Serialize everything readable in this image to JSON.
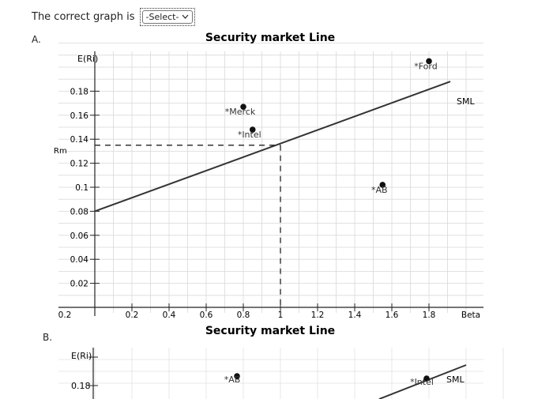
{
  "question": {
    "text": "The correct graph is",
    "select_value": "-Select-"
  },
  "options": [
    {
      "label": "A."
    },
    {
      "label": "B."
    }
  ],
  "chart_data": [
    {
      "type": "line",
      "title": "Security market Line",
      "ylabel": "E(Ri)",
      "xlabel": "Beta",
      "market_label": "Rm",
      "line_label": "SML",
      "x_ticks": [
        "0.2",
        "0.2",
        "0.4",
        "0.6",
        "0.8",
        "1",
        "1.2",
        "1.4",
        "1.6",
        "1.8",
        "Beta"
      ],
      "y_ticks": [
        "0.18",
        "0.16",
        "0.14",
        "0.12",
        "0.1",
        "0.08",
        "0.06",
        "0.04",
        "0.02"
      ],
      "sml": {
        "x": [
          0,
          2
        ],
        "y": [
          0.08,
          0.19
        ]
      },
      "market": {
        "beta": 1,
        "return": 0.135
      },
      "points": [
        {
          "name": "Merck",
          "x": 0.8,
          "y": 0.167
        },
        {
          "name": "Intel",
          "x": 0.85,
          "y": 0.148
        },
        {
          "name": "AB",
          "x": 1.55,
          "y": 0.102
        },
        {
          "name": "Ford",
          "x": 1.8,
          "y": 0.205
        }
      ],
      "grid": true
    },
    {
      "type": "line",
      "title": "Security market Line",
      "ylabel": "E(Ri)",
      "line_label": "SML",
      "y_ticks": [
        "0.18"
      ],
      "points": [
        {
          "name": "AB"
        },
        {
          "name": "Intel"
        }
      ]
    }
  ]
}
